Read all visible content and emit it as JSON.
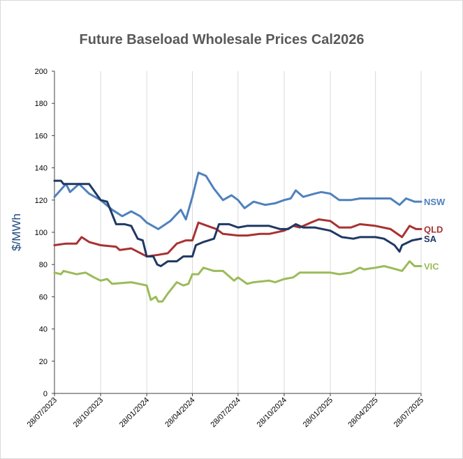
{
  "chart_data": {
    "type": "line",
    "title": "Future Baseload Wholesale Prices Cal2026",
    "ylabel": "$/MWh",
    "xlabel": "",
    "ylim": [
      0,
      200
    ],
    "yticks": [
      "0",
      "20",
      "40",
      "60",
      "80",
      "100",
      "120",
      "140",
      "160",
      "180",
      "200"
    ],
    "xticks": [
      "28/07/2023",
      "28/10/2023",
      "28/01/2024",
      "28/04/2024",
      "28/07/2024",
      "28/10/2024",
      "28/01/2025",
      "28/04/2025",
      "28/07/2025"
    ],
    "grid": "vertical",
    "legend": "labels at line ends (right)",
    "series": [
      {
        "name": "NSW",
        "color": "#4f81bd",
        "points": [
          [
            "28/07/2023",
            122
          ],
          [
            "20/08/2023",
            130
          ],
          [
            "28/08/2023",
            125
          ],
          [
            "15/09/2023",
            130
          ],
          [
            "05/10/2023",
            124
          ],
          [
            "28/10/2023",
            120
          ],
          [
            "20/11/2023",
            114
          ],
          [
            "10/12/2023",
            110
          ],
          [
            "28/12/2023",
            113
          ],
          [
            "15/01/2024",
            110
          ],
          [
            "28/01/2024",
            106
          ],
          [
            "20/02/2024",
            102
          ],
          [
            "15/03/2024",
            107
          ],
          [
            "05/04/2024",
            114
          ],
          [
            "15/04/2024",
            108
          ],
          [
            "28/04/2024",
            122
          ],
          [
            "10/05/2024",
            137
          ],
          [
            "25/05/2024",
            135
          ],
          [
            "10/06/2024",
            127
          ],
          [
            "28/06/2024",
            120
          ],
          [
            "15/07/2024",
            123
          ],
          [
            "28/07/2024",
            120
          ],
          [
            "10/08/2024",
            115
          ],
          [
            "28/08/2024",
            119
          ],
          [
            "20/09/2024",
            117
          ],
          [
            "10/10/2024",
            118
          ],
          [
            "28/10/2024",
            120
          ],
          [
            "10/11/2024",
            121
          ],
          [
            "20/11/2024",
            126
          ],
          [
            "05/12/2024",
            122
          ],
          [
            "28/12/2024",
            124
          ],
          [
            "10/01/2025",
            125
          ],
          [
            "28/01/2025",
            124
          ],
          [
            "15/02/2025",
            120
          ],
          [
            "10/03/2025",
            120
          ],
          [
            "28/03/2025",
            121
          ],
          [
            "28/04/2025",
            121
          ],
          [
            "28/05/2025",
            121
          ],
          [
            "15/06/2025",
            117
          ],
          [
            "28/06/2025",
            121
          ],
          [
            "15/07/2025",
            119
          ],
          [
            "28/07/2025",
            119
          ]
        ]
      },
      {
        "name": "QLD",
        "color": "#a83232",
        "points": [
          [
            "28/07/2023",
            92
          ],
          [
            "20/08/2023",
            93
          ],
          [
            "10/09/2023",
            93
          ],
          [
            "20/09/2023",
            97
          ],
          [
            "05/10/2023",
            94
          ],
          [
            "28/10/2023",
            92
          ],
          [
            "28/11/2023",
            91
          ],
          [
            "05/12/2023",
            89
          ],
          [
            "28/12/2023",
            90
          ],
          [
            "28/01/2024",
            85
          ],
          [
            "20/02/2024",
            86
          ],
          [
            "10/03/2024",
            87
          ],
          [
            "28/03/2024",
            93
          ],
          [
            "15/04/2024",
            95
          ],
          [
            "28/04/2024",
            95
          ],
          [
            "10/05/2024",
            106
          ],
          [
            "28/05/2024",
            104
          ],
          [
            "15/06/2024",
            102
          ],
          [
            "28/06/2024",
            99
          ],
          [
            "28/07/2024",
            98
          ],
          [
            "15/08/2024",
            98
          ],
          [
            "10/09/2024",
            99
          ],
          [
            "28/09/2024",
            99
          ],
          [
            "28/10/2024",
            101
          ],
          [
            "15/11/2024",
            104
          ],
          [
            "28/11/2024",
            103
          ],
          [
            "20/12/2024",
            106
          ],
          [
            "05/01/2025",
            108
          ],
          [
            "28/01/2025",
            107
          ],
          [
            "15/02/2025",
            103
          ],
          [
            "10/03/2025",
            103
          ],
          [
            "28/03/2025",
            105
          ],
          [
            "28/04/2025",
            104
          ],
          [
            "28/05/2025",
            102
          ],
          [
            "20/06/2025",
            97
          ],
          [
            "05/07/2025",
            104
          ],
          [
            "18/07/2025",
            102
          ],
          [
            "28/07/2025",
            102
          ]
        ]
      },
      {
        "name": "SA",
        "color": "#1f3864",
        "points": [
          [
            "28/07/2023",
            132
          ],
          [
            "10/08/2023",
            132
          ],
          [
            "15/08/2023",
            130
          ],
          [
            "28/09/2023",
            130
          ],
          [
            "05/10/2023",
            130
          ],
          [
            "28/10/2023",
            120
          ],
          [
            "10/11/2023",
            119
          ],
          [
            "28/11/2023",
            105
          ],
          [
            "15/12/2023",
            105
          ],
          [
            "28/12/2023",
            104
          ],
          [
            "10/01/2024",
            96
          ],
          [
            "20/01/2024",
            95
          ],
          [
            "28/01/2024",
            85
          ],
          [
            "10/02/2024",
            85
          ],
          [
            "18/02/2024",
            80
          ],
          [
            "25/02/2024",
            79
          ],
          [
            "10/03/2024",
            82
          ],
          [
            "28/03/2024",
            82
          ],
          [
            "10/04/2024",
            85
          ],
          [
            "28/04/2024",
            85
          ],
          [
            "05/05/2024",
            92
          ],
          [
            "20/05/2024",
            94
          ],
          [
            "10/06/2024",
            96
          ],
          [
            "20/06/2024",
            105
          ],
          [
            "10/07/2024",
            105
          ],
          [
            "28/07/2024",
            103
          ],
          [
            "15/08/2024",
            104
          ],
          [
            "28/08/2024",
            104
          ],
          [
            "28/09/2024",
            104
          ],
          [
            "20/10/2024",
            102
          ],
          [
            "05/11/2024",
            102
          ],
          [
            "20/11/2024",
            105
          ],
          [
            "05/12/2024",
            103
          ],
          [
            "28/12/2024",
            103
          ],
          [
            "28/01/2025",
            101
          ],
          [
            "20/02/2025",
            97
          ],
          [
            "15/03/2025",
            96
          ],
          [
            "28/03/2025",
            97
          ],
          [
            "28/04/2025",
            97
          ],
          [
            "15/05/2025",
            96
          ],
          [
            "05/06/2025",
            92
          ],
          [
            "15/06/2025",
            88
          ],
          [
            "20/06/2025",
            92
          ],
          [
            "10/07/2025",
            95
          ],
          [
            "28/07/2025",
            96
          ]
        ]
      },
      {
        "name": "VIC",
        "color": "#9bbb59",
        "points": [
          [
            "28/07/2023",
            75
          ],
          [
            "10/08/2023",
            74
          ],
          [
            "15/08/2023",
            76
          ],
          [
            "10/09/2023",
            74
          ],
          [
            "28/09/2023",
            75
          ],
          [
            "15/10/2023",
            72
          ],
          [
            "28/10/2023",
            70
          ],
          [
            "10/11/2023",
            71
          ],
          [
            "20/11/2023",
            68
          ],
          [
            "28/12/2023",
            69
          ],
          [
            "28/01/2024",
            67
          ],
          [
            "05/02/2024",
            58
          ],
          [
            "15/02/2024",
            60
          ],
          [
            "20/02/2024",
            57
          ],
          [
            "28/02/2024",
            57
          ],
          [
            "10/03/2024",
            62
          ],
          [
            "28/03/2024",
            69
          ],
          [
            "10/04/2024",
            67
          ],
          [
            "20/04/2024",
            68
          ],
          [
            "28/04/2024",
            74
          ],
          [
            "10/05/2024",
            74
          ],
          [
            "20/05/2024",
            78
          ],
          [
            "10/06/2024",
            76
          ],
          [
            "28/06/2024",
            76
          ],
          [
            "20/07/2024",
            70
          ],
          [
            "28/07/2024",
            72
          ],
          [
            "15/08/2024",
            68
          ],
          [
            "28/08/2024",
            69
          ],
          [
            "28/09/2024",
            70
          ],
          [
            "10/10/2024",
            69
          ],
          [
            "28/10/2024",
            71
          ],
          [
            "15/11/2024",
            72
          ],
          [
            "28/11/2024",
            75
          ],
          [
            "28/12/2024",
            75
          ],
          [
            "28/01/2025",
            75
          ],
          [
            "15/02/2025",
            74
          ],
          [
            "10/03/2025",
            75
          ],
          [
            "28/03/2025",
            78
          ],
          [
            "05/04/2025",
            77
          ],
          [
            "28/04/2025",
            78
          ],
          [
            "15/05/2025",
            79
          ],
          [
            "28/05/2025",
            78
          ],
          [
            "20/06/2025",
            76
          ],
          [
            "05/07/2025",
            82
          ],
          [
            "15/07/2025",
            79
          ],
          [
            "28/07/2025",
            79
          ]
        ]
      }
    ]
  }
}
